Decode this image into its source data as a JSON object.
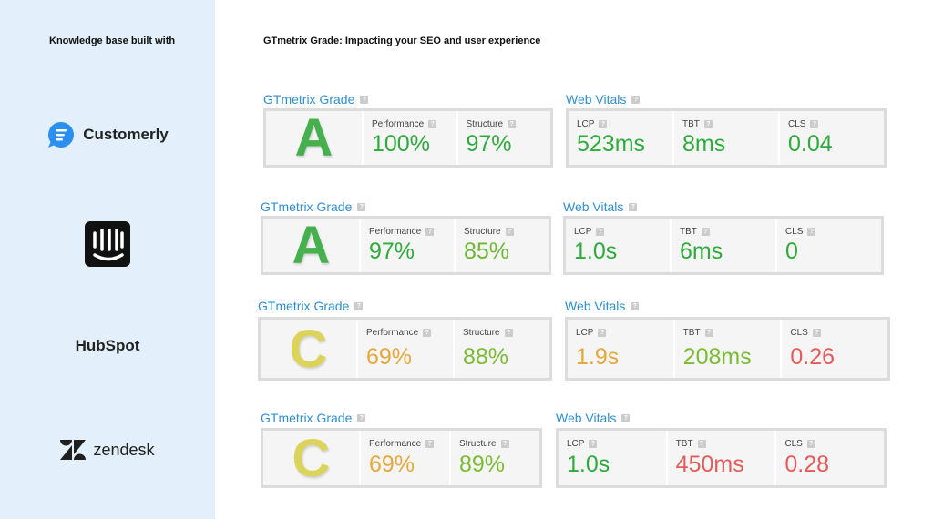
{
  "header": {
    "left": "Knowledge base built with",
    "right": "GTmetrix Grade: Impacting your SEO and user experience"
  },
  "help_icon": "?",
  "rows": [
    {
      "brand": "Customerly",
      "grade_title": "GTmetrix Grade",
      "grade": "A",
      "grade_color": "#46b04e",
      "metrics": [
        {
          "label": "Performance",
          "value": "100%",
          "color": "#2faa3c"
        },
        {
          "label": "Structure",
          "value": "97%",
          "color": "#2faa3c"
        }
      ],
      "vitals_title": "Web Vitals",
      "vitals": [
        {
          "label": "LCP",
          "value": "523ms",
          "color": "#2faa3c"
        },
        {
          "label": "TBT",
          "value": "8ms",
          "color": "#2faa3c"
        },
        {
          "label": "CLS",
          "value": "0.04",
          "color": "#2faa3c"
        }
      ]
    },
    {
      "grade_title": "GTmetrix Grade",
      "grade": "A",
      "grade_color": "#46b04e",
      "metrics": [
        {
          "label": "Performance",
          "value": "97%",
          "color": "#2faa3c"
        },
        {
          "label": "Structure",
          "value": "85%",
          "color": "#6db83a"
        }
      ],
      "vitals_title": "Web Vitals",
      "vitals": [
        {
          "label": "LCP",
          "value": "1.0s",
          "color": "#2faa3c"
        },
        {
          "label": "TBT",
          "value": "6ms",
          "color": "#2faa3c"
        },
        {
          "label": "CLS",
          "value": "0",
          "color": "#2faa3c"
        }
      ]
    },
    {
      "brand": "HubSpot",
      "grade_title": "GTmetrix Grade",
      "grade": "C",
      "grade_color": "#dcd45a",
      "metrics": [
        {
          "label": "Performance",
          "value": "69%",
          "color": "#e5a83a"
        },
        {
          "label": "Structure",
          "value": "88%",
          "color": "#7cbc34"
        }
      ],
      "vitals_title": "Web Vitals",
      "vitals": [
        {
          "label": "LCP",
          "value": "1.9s",
          "color": "#e5a83a"
        },
        {
          "label": "TBT",
          "value": "208ms",
          "color": "#7cbc34"
        },
        {
          "label": "CLS",
          "value": "0.26",
          "color": "#e55b5b"
        }
      ]
    },
    {
      "brand": "zendesk",
      "grade_title": "GTmetrix Grade",
      "grade": "C",
      "grade_color": "#dcd45a",
      "metrics": [
        {
          "label": "Performance",
          "value": "69%",
          "color": "#e5a83a"
        },
        {
          "label": "Structure",
          "value": "89%",
          "color": "#7cbc34"
        }
      ],
      "vitals_title": "Web Vitals",
      "vitals": [
        {
          "label": "LCP",
          "value": "1.0s",
          "color": "#2faa3c"
        },
        {
          "label": "TBT",
          "value": "450ms",
          "color": "#e55b5b"
        },
        {
          "label": "CLS",
          "value": "0.28",
          "color": "#e55b5b"
        }
      ]
    }
  ]
}
